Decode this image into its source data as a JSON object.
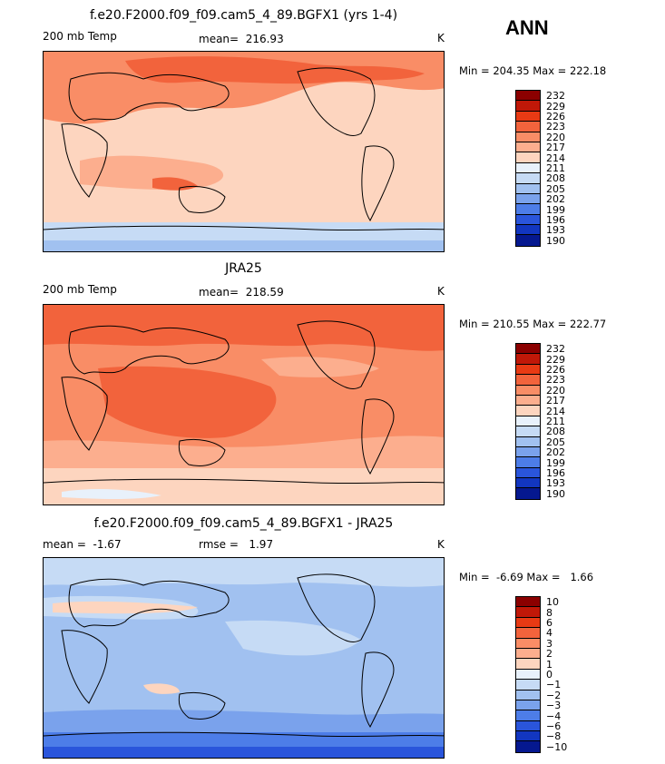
{
  "season": "ANN",
  "chart_data": [
    {
      "type": "heatmap",
      "title": "f.e20.F2000.f09_f09.cam5_4_89.BGFX1 (yrs 1-4)",
      "variable": "200 mb Temp",
      "stat_text": "mean=  216.93",
      "mean": 216.93,
      "units": "K",
      "minmax_text": "Min = 204.35 Max = 222.18",
      "min": 204.35,
      "max": 222.18,
      "levels": [
        "232",
        "229",
        "226",
        "223",
        "220",
        "217",
        "214",
        "211",
        "208",
        "205",
        "202",
        "199",
        "196",
        "193",
        "190"
      ],
      "colors": [
        "#8b0000",
        "#c01808",
        "#e83a14",
        "#f2633c",
        "#f98d66",
        "#fcae8e",
        "#fdd5bf",
        "#e8f1fb",
        "#c6dbf5",
        "#a1c1f0",
        "#7aa2ec",
        "#4d7de8",
        "#2a55db",
        "#1236c0",
        "#05188f"
      ]
    },
    {
      "type": "heatmap",
      "title": "JRA25",
      "variable": "200 mb Temp",
      "stat_text": "mean=  218.59",
      "mean": 218.59,
      "units": "K",
      "minmax_text": "Min = 210.55 Max = 222.77",
      "min": 210.55,
      "max": 222.77,
      "levels": [
        "232",
        "229",
        "226",
        "223",
        "220",
        "217",
        "214",
        "211",
        "208",
        "205",
        "202",
        "199",
        "196",
        "193",
        "190"
      ],
      "colors": [
        "#8b0000",
        "#c01808",
        "#e83a14",
        "#f2633c",
        "#f98d66",
        "#fcae8e",
        "#fdd5bf",
        "#e8f1fb",
        "#c6dbf5",
        "#a1c1f0",
        "#7aa2ec",
        "#4d7de8",
        "#2a55db",
        "#1236c0",
        "#05188f"
      ]
    },
    {
      "type": "heatmap",
      "title": "f.e20.F2000.f09_f09.cam5_4_89.BGFX1 - JRA25",
      "variable": "",
      "stat_text": "mean =  -1.67",
      "stat2_text": "rmse =   1.97",
      "mean": -1.67,
      "rmse": 1.97,
      "units": "K",
      "minmax_text": "Min =  -6.69 Max =   1.66",
      "min": -6.69,
      "max": 1.66,
      "levels": [
        "10",
        "8",
        "6",
        "4",
        "3",
        "2",
        "1",
        "0",
        "−1",
        "−2",
        "−3",
        "−4",
        "−6",
        "−8",
        "−10"
      ],
      "colors": [
        "#8b0000",
        "#c01808",
        "#e83a14",
        "#f2633c",
        "#f98d66",
        "#fcae8e",
        "#fdd5bf",
        "#e8f1fb",
        "#c6dbf5",
        "#a1c1f0",
        "#7aa2ec",
        "#4d7de8",
        "#2a55db",
        "#1236c0",
        "#05188f"
      ]
    }
  ]
}
